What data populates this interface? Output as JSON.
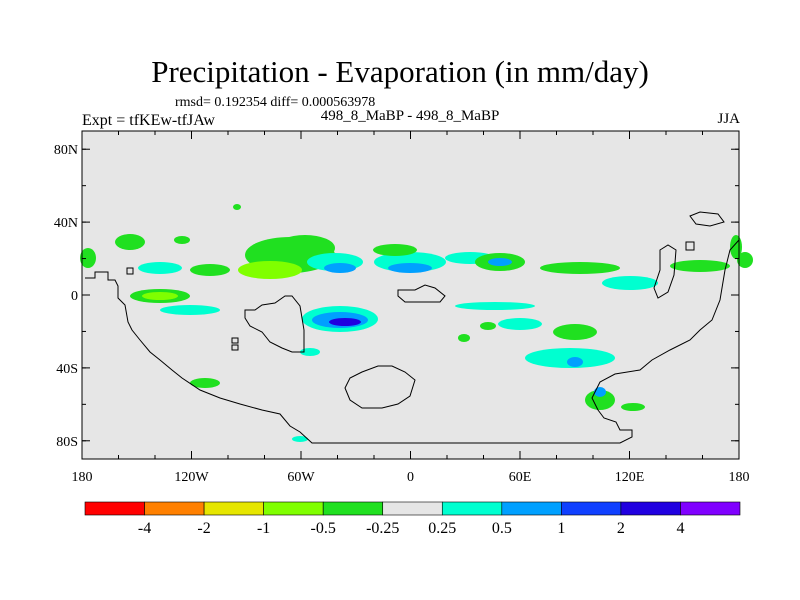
{
  "chart_data": {
    "type": "heatmap",
    "title": "Precipitation - Evaporation (in mm/day)",
    "stats": "rmsd= 0.192354 diff= 0.000563978",
    "left_label": "Expt = tfKEw-tfJAw",
    "center_label": "498_8_MaBP - 498_8_MaBP",
    "right_label": "JJA",
    "x_ticks": [
      "180",
      "120W",
      "60W",
      "0",
      "60E",
      "120E",
      "180"
    ],
    "y_ticks": [
      "80N",
      "40N",
      "0",
      "40S",
      "80S"
    ],
    "xlim": [
      -180,
      180
    ],
    "ylim": [
      -90,
      90
    ],
    "colorbar": {
      "levels": [
        "-4",
        "-2",
        "-1",
        "-0.5",
        "-0.25",
        "0.25",
        "0.5",
        "1",
        "2",
        "4"
      ],
      "colors": [
        "#ff0000",
        "#ff8000",
        "#e6e600",
        "#80ff00",
        "#20e020",
        "#e6e6e6",
        "#00ffd0",
        "#00a0ff",
        "#1040ff",
        "#2000e0",
        "#8000ff"
      ]
    },
    "background_color": "#e6e6e6"
  }
}
